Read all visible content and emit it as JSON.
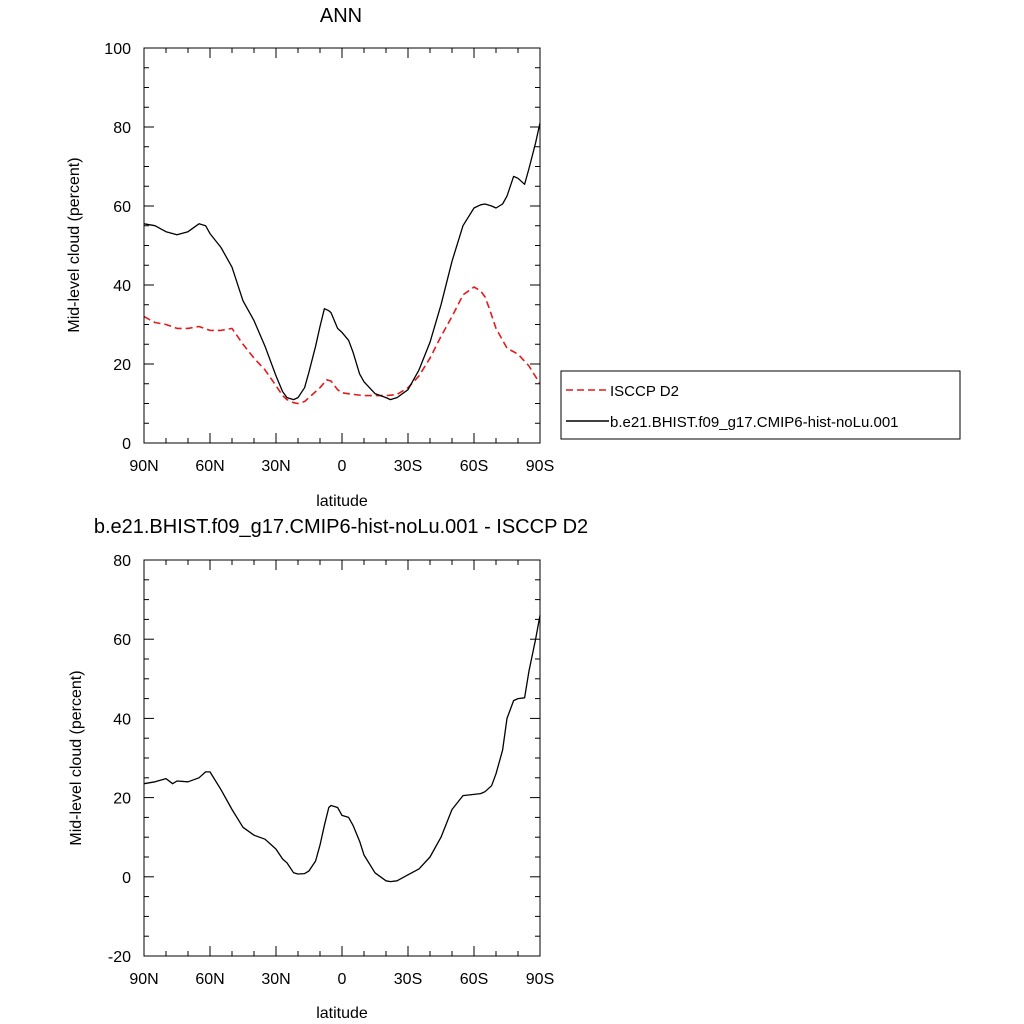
{
  "colors": {
    "obs": "#e41a1c",
    "model": "#000000"
  },
  "chart_data": [
    {
      "type": "line",
      "title": "ANN",
      "xlabel": "latitude",
      "ylabel": "Mid-level cloud (percent)",
      "xlim": [
        -90,
        90
      ],
      "ylim": [
        0,
        100
      ],
      "xticks": [
        -90,
        -60,
        -30,
        0,
        30,
        60,
        90
      ],
      "xtick_labels": [
        "90N",
        "60N",
        "30N",
        "0",
        "30S",
        "60S",
        "90S"
      ],
      "yticks": [
        0,
        20,
        40,
        60,
        80,
        100
      ],
      "ytick_labels": [
        "0",
        "20",
        "40",
        "60",
        "80",
        "100"
      ],
      "legend_placement": "right",
      "series": [
        {
          "name": "ISCCP D2",
          "style": "dashed",
          "color": "#e41a1c",
          "x": [
            -90,
            -85,
            -80,
            -75,
            -70,
            -65,
            -60,
            -55,
            -50,
            -45,
            -40,
            -35,
            -30,
            -27,
            -25,
            -22,
            -20,
            -17,
            -15,
            -12,
            -10,
            -7,
            -5,
            -2,
            0,
            5,
            10,
            15,
            20,
            22,
            25,
            30,
            35,
            40,
            45,
            50,
            55,
            60,
            63,
            65,
            67,
            70,
            75,
            80,
            85,
            90
          ],
          "y": [
            32,
            30.5,
            30,
            29,
            29,
            29.5,
            28.5,
            28.5,
            29,
            25,
            21.5,
            18.5,
            14.5,
            12,
            11,
            10.2,
            10,
            10.5,
            11.5,
            13,
            14,
            16,
            15.7,
            13.5,
            12.7,
            12.3,
            12,
            12,
            12,
            12.1,
            12.3,
            14,
            17,
            21.5,
            27,
            32,
            37.5,
            39.5,
            38.5,
            37,
            34,
            29,
            24,
            22.5,
            19.5,
            15
          ]
        },
        {
          "name": "b.e21.BHIST.f09_g17.CMIP6-hist-noLu.001",
          "style": "solid",
          "color": "#000000",
          "x": [
            -90,
            -85,
            -80,
            -75,
            -70,
            -65,
            -62,
            -60,
            -55,
            -50,
            -45,
            -40,
            -35,
            -30,
            -27,
            -25,
            -22,
            -20,
            -17,
            -15,
            -12,
            -10,
            -8,
            -6,
            -5,
            -2,
            0,
            3,
            5,
            8,
            10,
            15,
            20,
            22,
            25,
            30,
            35,
            40,
            45,
            50,
            55,
            60,
            63,
            65,
            68,
            70,
            73,
            75,
            78,
            80,
            83,
            85,
            88,
            90
          ],
          "y": [
            55.5,
            55,
            53.5,
            52.7,
            53.5,
            55.5,
            55,
            53,
            49.5,
            44.5,
            36,
            31,
            24.5,
            17,
            13,
            11.5,
            11,
            11.5,
            14,
            18,
            24.5,
            29.5,
            34,
            33.5,
            33,
            29,
            28,
            26,
            23,
            17.5,
            15.5,
            12.5,
            11.5,
            11,
            11.5,
            13.5,
            18.5,
            25.5,
            35,
            46,
            55,
            59.5,
            60.3,
            60.5,
            60,
            59.5,
            60.5,
            62.5,
            67.5,
            67,
            65.5,
            69.5,
            76,
            81
          ]
        }
      ]
    },
    {
      "type": "line",
      "title": "b.e21.BHIST.f09_g17.CMIP6-hist-noLu.001 - ISCCP D2",
      "xlabel": "latitude",
      "ylabel": "Mid-level cloud (percent)",
      "xlim": [
        -90,
        90
      ],
      "ylim": [
        -20,
        80
      ],
      "xticks": [
        -90,
        -60,
        -30,
        0,
        30,
        60,
        90
      ],
      "xtick_labels": [
        "90N",
        "60N",
        "30N",
        "0",
        "30S",
        "60S",
        "90S"
      ],
      "yticks": [
        -20,
        0,
        20,
        40,
        60,
        80
      ],
      "ytick_labels": [
        "-20",
        "0",
        "20",
        "40",
        "60",
        "80"
      ],
      "series": [
        {
          "style": "solid",
          "color": "#000000",
          "x": [
            -90,
            -85,
            -80,
            -77,
            -75,
            -70,
            -65,
            -62,
            -60,
            -55,
            -50,
            -45,
            -40,
            -35,
            -32,
            -30,
            -27,
            -25,
            -22,
            -20,
            -17,
            -15,
            -12,
            -10,
            -8,
            -6,
            -5,
            -2,
            0,
            3,
            5,
            8,
            10,
            15,
            20,
            22,
            25,
            30,
            35,
            40,
            45,
            50,
            55,
            60,
            63,
            65,
            68,
            70,
            73,
            75,
            78,
            80,
            83,
            85,
            88,
            90
          ],
          "y": [
            23.5,
            24,
            24.8,
            23.5,
            24.2,
            24,
            25,
            26.5,
            26.5,
            22,
            17,
            12.5,
            10.5,
            9.5,
            8,
            7,
            4.5,
            3.5,
            1,
            0.7,
            0.8,
            1.5,
            4,
            8,
            13,
            17.5,
            18,
            17.5,
            15.5,
            15,
            13,
            9,
            5.5,
            1,
            -1,
            -1.2,
            -1,
            0.5,
            2,
            5,
            10,
            17,
            20.5,
            20.8,
            21,
            21.5,
            23,
            26,
            32,
            40,
            44.5,
            45,
            45.2,
            52,
            60,
            66
          ]
        }
      ]
    }
  ]
}
